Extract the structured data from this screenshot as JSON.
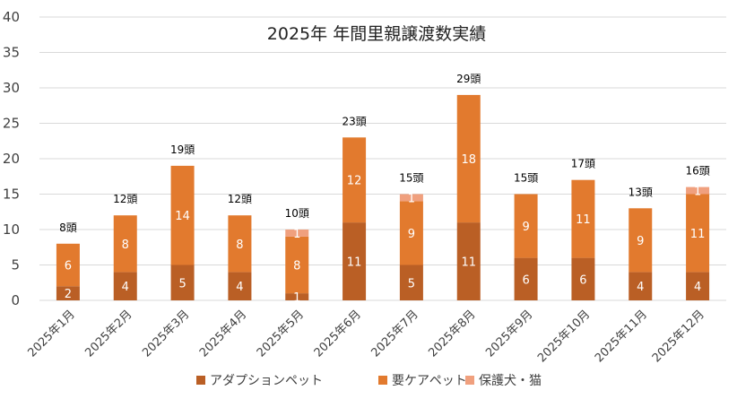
{
  "chart_data": {
    "type": "bar",
    "stacked": true,
    "title": "2025年 年間里親譲渡数実績",
    "xlabel": "",
    "ylabel": "",
    "ylim": [
      0,
      40
    ],
    "yticks": [
      0,
      5,
      10,
      15,
      20,
      25,
      30,
      35,
      40
    ],
    "grid": true,
    "legend_position": "bottom",
    "categories": [
      "2025年1月",
      "2025年2月",
      "2025年3月",
      "2025年4月",
      "2025年5月",
      "2025年6月",
      "2025年7月",
      "2025年8月",
      "2025年9月",
      "2025年10月",
      "2025年11月",
      "2025年12月"
    ],
    "series": [
      {
        "name": "アダプションペット",
        "color": "#BA5F25",
        "values": [
          2,
          4,
          5,
          4,
          1,
          11,
          5,
          11,
          6,
          6,
          4,
          4
        ]
      },
      {
        "name": "要ケアペット",
        "color": "#E27A2E",
        "values": [
          6,
          8,
          14,
          8,
          8,
          12,
          9,
          18,
          9,
          11,
          9,
          11
        ]
      },
      {
        "name": "保護犬・猫",
        "color": "#F0A07E",
        "values": [
          0,
          0,
          0,
          0,
          1,
          0,
          1,
          0,
          0,
          0,
          0,
          1
        ]
      }
    ],
    "totals": [
      "8頭",
      "12頭",
      "19頭",
      "12頭",
      "10頭",
      "23頭",
      "15頭",
      "29頭",
      "15頭",
      "17頭",
      "13頭",
      "16頭"
    ]
  }
}
